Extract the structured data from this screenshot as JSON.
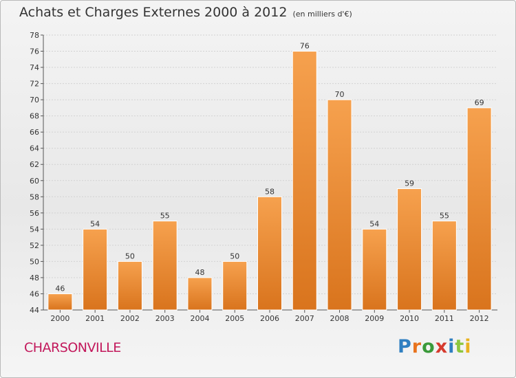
{
  "title": "Achats et Charges Externes 2000 à 2012",
  "unit": "(en milliers d'€)",
  "city": "CHARSONVILLE",
  "logo": {
    "text": "Proxiti",
    "letters": [
      {
        "ch": "P",
        "color": "#2f7fc1"
      },
      {
        "ch": "r",
        "color": "#e8731e"
      },
      {
        "ch": "o",
        "color": "#3a9a3a"
      },
      {
        "ch": "x",
        "color": "#d63b2e"
      },
      {
        "ch": "i",
        "color": "#2f7fc1"
      },
      {
        "ch": "t",
        "color": "#8cc63f"
      },
      {
        "ch": "i",
        "color": "#e8b21e"
      }
    ]
  },
  "colors": {
    "bar_top": "#f6a14e",
    "bar_bottom": "#d9741d",
    "axis": "#555555",
    "grid": "#d2d2d2"
  },
  "chart_data": {
    "type": "bar",
    "categories": [
      "2000",
      "2001",
      "2002",
      "2003",
      "2004",
      "2005",
      "2006",
      "2007",
      "2008",
      "2009",
      "2010",
      "2011",
      "2012"
    ],
    "values": [
      46,
      54,
      50,
      55,
      48,
      50,
      58,
      76,
      70,
      54,
      59,
      55,
      69
    ],
    "ylim": [
      44,
      78
    ],
    "yticks": [
      44,
      46,
      48,
      50,
      52,
      54,
      56,
      58,
      60,
      62,
      64,
      66,
      68,
      70,
      72,
      74,
      76,
      78
    ],
    "grid": true,
    "title": "Achats et Charges Externes 2000 à 2012"
  }
}
